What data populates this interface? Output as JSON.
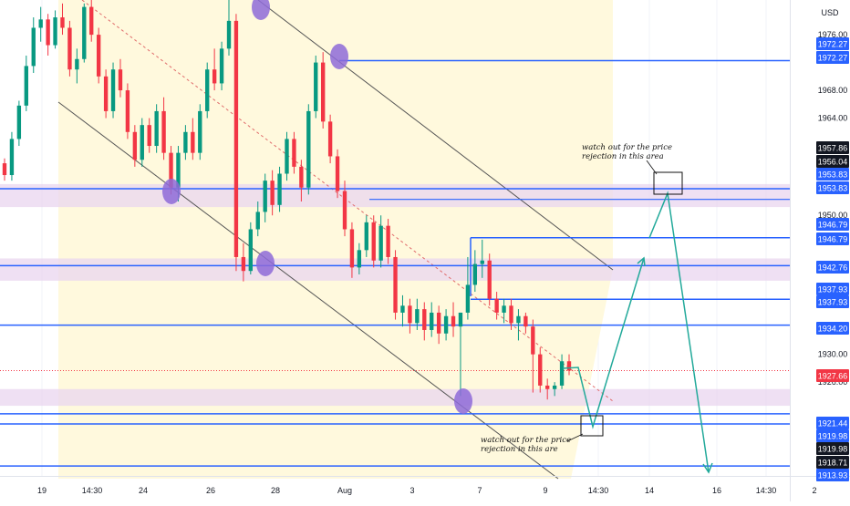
{
  "chart_data": {
    "type": "candlestick",
    "currency": "USD",
    "x_ticks": [
      "19",
      "14:30",
      "24",
      "26",
      "28",
      "Aug",
      "3",
      "7",
      "9",
      "14:30",
      "14",
      "16",
      "14:30",
      "2"
    ],
    "y_ticks": [
      1976.0,
      1968.0,
      1964.0,
      1950.0,
      1930.0,
      1926.0
    ],
    "y_range": [
      1912.5,
      1981.0
    ],
    "price_labels": [
      {
        "text": "1972.27",
        "style": "blue"
      },
      {
        "text": "1972.27",
        "style": "blue"
      },
      {
        "text": "1957.86",
        "style": "black"
      },
      {
        "text": "1956.04",
        "style": "black"
      },
      {
        "text": "1953.83",
        "style": "blue"
      },
      {
        "text": "1953.83",
        "style": "blue"
      },
      {
        "text": "1946.79",
        "style": "blue"
      },
      {
        "text": "1946.79",
        "style": "blue"
      },
      {
        "text": "1942.76",
        "style": "blue"
      },
      {
        "text": "1937.93",
        "style": "blue"
      },
      {
        "text": "1937.93",
        "style": "blue"
      },
      {
        "text": "1934.20",
        "style": "blue"
      },
      {
        "text": "1927.66",
        "style": "red"
      },
      {
        "text": "1921.44",
        "style": "blue"
      },
      {
        "text": "1919.98",
        "style": "blue"
      },
      {
        "text": "1919.98",
        "style": "black"
      },
      {
        "text": "1918.71",
        "style": "black"
      },
      {
        "text": "1913.93",
        "style": "blue"
      }
    ],
    "horizontal_levels": [
      1972.27,
      1953.83,
      1946.79,
      1942.76,
      1937.93,
      1934.2,
      1921.44,
      1919.98,
      1913.93
    ],
    "zones": [
      {
        "from": 1951.2,
        "to": 1954.5
      },
      {
        "from": 1940.6,
        "to": 1943.8
      },
      {
        "from": 1922.6,
        "to": 1925.0
      }
    ],
    "last_price": 1927.66,
    "annotations": [
      {
        "text": [
          "watch out for the price",
          "rejection in this area"
        ]
      },
      {
        "text": [
          "watch out for the price",
          "rejection in this are"
        ]
      }
    ],
    "candles": [
      [
        1957.5,
        1958.2,
        1955.0,
        1955.8
      ],
      [
        1955.8,
        1962.0,
        1955.0,
        1961.0
      ],
      [
        1961.0,
        1966.5,
        1960.0,
        1965.8
      ],
      [
        1965.8,
        1973.0,
        1965.0,
        1971.5
      ],
      [
        1971.5,
        1978.5,
        1970.5,
        1977.0
      ],
      [
        1977.0,
        1980.0,
        1975.0,
        1978.2
      ],
      [
        1978.2,
        1979.0,
        1973.0,
        1974.5
      ],
      [
        1974.5,
        1979.5,
        1974.0,
        1978.5
      ],
      [
        1978.5,
        1980.5,
        1976.0,
        1977.0
      ],
      [
        1977.0,
        1978.0,
        1970.0,
        1971.0
      ],
      [
        1971.0,
        1974.0,
        1969.0,
        1972.5
      ],
      [
        1972.5,
        1980.5,
        1972.0,
        1980.0
      ],
      [
        1980.0,
        1981.0,
        1975.0,
        1976.0
      ],
      [
        1976.0,
        1977.0,
        1969.0,
        1970.0
      ],
      [
        1970.0,
        1971.0,
        1964.0,
        1965.0
      ],
      [
        1965.0,
        1972.0,
        1964.0,
        1971.0
      ],
      [
        1971.0,
        1972.5,
        1967.0,
        1968.0
      ],
      [
        1968.0,
        1969.0,
        1961.0,
        1962.0
      ],
      [
        1962.0,
        1963.0,
        1957.0,
        1958.0
      ],
      [
        1958.0,
        1964.0,
        1957.0,
        1963.0
      ],
      [
        1963.0,
        1964.0,
        1959.0,
        1960.0
      ],
      [
        1960.0,
        1966.0,
        1959.0,
        1965.0
      ],
      [
        1965.0,
        1967.0,
        1958.0,
        1959.0
      ],
      [
        1959.0,
        1960.0,
        1953.0,
        1954.0
      ],
      [
        1954.0,
        1960.0,
        1952.0,
        1959.0
      ],
      [
        1959.0,
        1963.0,
        1958.0,
        1962.0
      ],
      [
        1962.0,
        1964.0,
        1958.0,
        1959.0
      ],
      [
        1959.0,
        1966.0,
        1958.0,
        1965.0
      ],
      [
        1965.0,
        1972.0,
        1964.0,
        1971.0
      ],
      [
        1971.0,
        1974.0,
        1968.0,
        1969.0
      ],
      [
        1969.0,
        1975.0,
        1968.0,
        1974.0
      ],
      [
        1974.0,
        1981.0,
        1973.0,
        1978.0
      ],
      [
        1978.0,
        1979.0,
        1942.0,
        1944.0
      ],
      [
        1944.0,
        1946.0,
        1940.5,
        1942.0
      ],
      [
        1942.0,
        1949.0,
        1941.5,
        1948.0
      ],
      [
        1948.0,
        1952.0,
        1947.0,
        1950.5
      ],
      [
        1950.5,
        1956.0,
        1949.0,
        1955.0
      ],
      [
        1955.0,
        1956.5,
        1950.0,
        1951.5
      ],
      [
        1951.5,
        1957.0,
        1950.5,
        1956.0
      ],
      [
        1956.0,
        1962.0,
        1955.0,
        1961.0
      ],
      [
        1961.0,
        1962.0,
        1956.0,
        1957.0
      ],
      [
        1957.0,
        1958.0,
        1952.0,
        1954.0
      ],
      [
        1954.0,
        1966.0,
        1953.0,
        1965.0
      ],
      [
        1965.0,
        1973.0,
        1964.0,
        1972.0
      ],
      [
        1972.0,
        1973.5,
        1962.5,
        1963.5
      ],
      [
        1963.5,
        1964.5,
        1957.5,
        1958.5
      ],
      [
        1958.5,
        1959.5,
        1952.5,
        1953.5
      ],
      [
        1953.5,
        1955.0,
        1947.0,
        1948.0
      ],
      [
        1948.0,
        1949.0,
        1941.0,
        1942.5
      ],
      [
        1942.5,
        1946.0,
        1941.5,
        1945.0
      ],
      [
        1945.0,
        1950.0,
        1944.0,
        1949.0
      ],
      [
        1949.0,
        1950.0,
        1942.5,
        1943.5
      ],
      [
        1943.5,
        1950.0,
        1942.5,
        1948.5
      ],
      [
        1948.5,
        1949.5,
        1943.0,
        1944.0
      ],
      [
        1944.0,
        1945.0,
        1935.0,
        1936.0
      ],
      [
        1936.0,
        1938.5,
        1934.0,
        1937.0
      ],
      [
        1937.0,
        1938.0,
        1933.0,
        1934.5
      ],
      [
        1934.5,
        1938.0,
        1933.5,
        1936.5
      ],
      [
        1936.5,
        1937.5,
        1932.0,
        1933.5
      ],
      [
        1933.5,
        1937.5,
        1932.5,
        1936.0
      ],
      [
        1936.0,
        1937.0,
        1931.5,
        1933.0
      ],
      [
        1933.0,
        1936.5,
        1932.0,
        1935.5
      ],
      [
        1935.5,
        1937.5,
        1932.5,
        1934.0
      ],
      [
        1934.0,
        1936.0,
        1924.0,
        1936.0
      ],
      [
        1936.0,
        1944.0,
        1935.0,
        1940.0
      ],
      [
        1940.0,
        1945.0,
        1939.0,
        1943.0
      ],
      [
        1943.0,
        1946.5,
        1941.0,
        1943.5
      ],
      [
        1943.5,
        1944.5,
        1937.0,
        1938.0
      ],
      [
        1938.0,
        1939.0,
        1935.0,
        1936.0
      ],
      [
        1936.0,
        1938.0,
        1934.5,
        1937.0
      ],
      [
        1937.0,
        1938.0,
        1933.5,
        1934.5
      ],
      [
        1934.5,
        1936.5,
        1932.0,
        1935.5
      ],
      [
        1935.5,
        1936.0,
        1933.0,
        1934.0
      ],
      [
        1934.0,
        1935.0,
        1924.5,
        1930.0
      ],
      [
        1930.0,
        1931.0,
        1924.5,
        1925.5
      ],
      [
        1925.5,
        1926.5,
        1923.5,
        1925.0
      ],
      [
        1925.0,
        1926.0,
        1924.0,
        1925.5
      ],
      [
        1925.5,
        1930.0,
        1925.0,
        1929.0
      ],
      [
        1929.0,
        1930.0,
        1927.0,
        1927.66
      ]
    ]
  }
}
